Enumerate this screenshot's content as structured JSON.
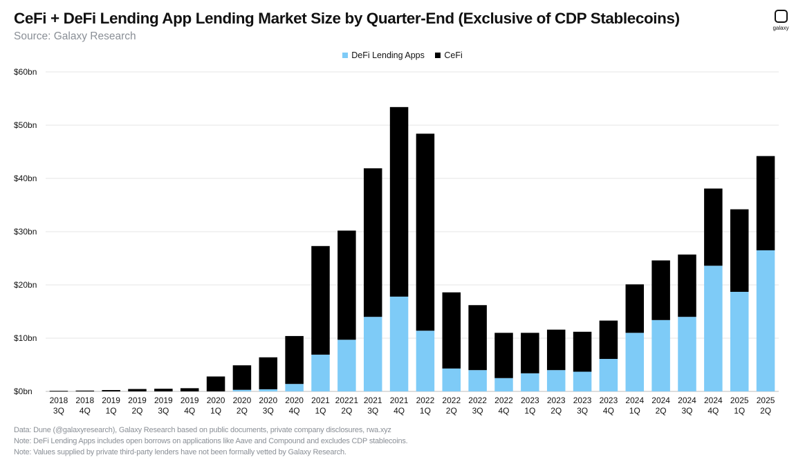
{
  "header": {
    "title": "CeFi + DeFi Lending App Lending Market Size by Quarter-End (Exclusive of CDP Stablecoins)",
    "subtitle": "Source: Galaxy Research"
  },
  "logo": {
    "label": "galaxy"
  },
  "colors": {
    "defi": "#7ecbf7",
    "cefi": "#000000",
    "grid": "#e6e6e6",
    "axis_text": "#111111"
  },
  "chart_data": {
    "type": "bar",
    "stacked": true,
    "title": "CeFi + DeFi Lending App Lending Market Size by Quarter-End (Exclusive of CDP Stablecoins)",
    "xlabel": "",
    "ylabel": "",
    "ylim": [
      0,
      60
    ],
    "ytick_labels": [
      "$0bn",
      "$10bn",
      "$20bn",
      "$30bn",
      "$40bn",
      "$50bn",
      "$60bn"
    ],
    "legend_position": "top-center",
    "grid": true,
    "categories": [
      [
        "2018",
        "3Q"
      ],
      [
        "2018",
        "4Q"
      ],
      [
        "2019",
        "1Q"
      ],
      [
        "2019",
        "2Q"
      ],
      [
        "2019",
        "3Q"
      ],
      [
        "2019",
        "4Q"
      ],
      [
        "2020",
        "1Q"
      ],
      [
        "2020",
        "2Q"
      ],
      [
        "2020",
        "3Q"
      ],
      [
        "2020",
        "4Q"
      ],
      [
        "2021",
        "1Q"
      ],
      [
        "20221",
        "2Q"
      ],
      [
        "2021",
        "3Q"
      ],
      [
        "2021",
        "4Q"
      ],
      [
        "2022",
        "1Q"
      ],
      [
        "2022",
        "2Q"
      ],
      [
        "2022",
        "3Q"
      ],
      [
        "2022",
        "4Q"
      ],
      [
        "2023",
        "1Q"
      ],
      [
        "2023",
        "2Q"
      ],
      [
        "2023",
        "3Q"
      ],
      [
        "2023",
        "4Q"
      ],
      [
        "2024",
        "1Q"
      ],
      [
        "2024",
        "2Q"
      ],
      [
        "2024",
        "3Q"
      ],
      [
        "2024",
        "4Q"
      ],
      [
        "2025",
        "1Q"
      ],
      [
        "2025",
        "2Q"
      ]
    ],
    "series": [
      {
        "name": "DeFi Lending Apps",
        "color": "#7ecbf7",
        "values": [
          0,
          0,
          0,
          0,
          0,
          0,
          0,
          0.3,
          0.4,
          1.4,
          6.9,
          9.7,
          14.0,
          17.8,
          11.4,
          4.3,
          4.0,
          2.5,
          3.4,
          4.0,
          3.7,
          6.1,
          11.0,
          13.4,
          14.0,
          23.6,
          18.7,
          26.5
        ]
      },
      {
        "name": "CeFi",
        "color": "#000000",
        "values": [
          0.1,
          0.15,
          0.25,
          0.45,
          0.5,
          0.6,
          2.8,
          4.6,
          6.0,
          9.0,
          20.4,
          20.5,
          27.9,
          35.6,
          37.0,
          14.3,
          12.2,
          8.5,
          7.6,
          7.6,
          7.5,
          7.2,
          9.1,
          11.2,
          11.7,
          14.5,
          15.5,
          17.7
        ]
      }
    ]
  },
  "notes": [
    "Data: Dune (@galaxyresearch), Galaxy Research based on public documents, private company disclosures, rwa.xyz",
    "Note: DeFi Lending Apps includes open borrows on applications like Aave and Compound and excludes CDP stablecoins.",
    "Note: Values supplied by private third-party lenders have not been formally vetted  by Galaxy Research."
  ]
}
